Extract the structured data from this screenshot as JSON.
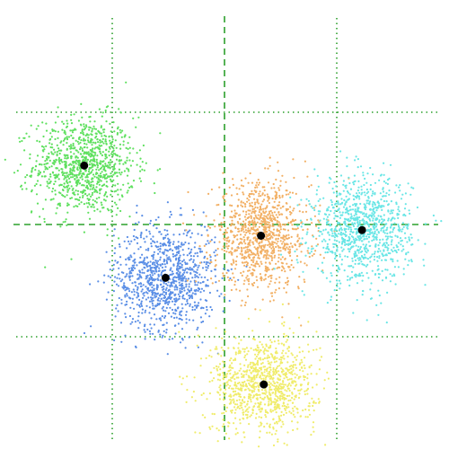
{
  "chart_data": {
    "type": "scatter",
    "title": "",
    "xlabel": "",
    "ylabel": "",
    "xlim": [
      -8,
      8
    ],
    "ylim": [
      -8,
      8
    ],
    "grid": {
      "color": "#2ca02c",
      "vertical_dotted": [
        -4,
        4
      ],
      "horizontal_dotted": [
        4,
        -4
      ],
      "vertical_dashed": [
        0
      ],
      "horizontal_dashed": [
        0
      ]
    },
    "point_counts_per_cluster": 1000,
    "series": [
      {
        "color": "#5fe05f",
        "center": [
          -5.0,
          2.1
        ],
        "spread": [
          1.25,
          1.2
        ]
      },
      {
        "color": "#5b8fe6",
        "center": [
          -2.1,
          -1.9
        ],
        "spread": [
          1.25,
          1.3
        ]
      },
      {
        "color": "#f2b065",
        "center": [
          1.3,
          -0.4
        ],
        "spread": [
          1.2,
          1.3
        ]
      },
      {
        "color": "#6ae6e6",
        "center": [
          4.9,
          -0.2
        ],
        "spread": [
          1.2,
          1.3
        ]
      },
      {
        "color": "#f0ec6a",
        "center": [
          1.4,
          -5.7
        ],
        "spread": [
          1.3,
          1.2
        ]
      }
    ],
    "centroid_color": "#000000"
  }
}
